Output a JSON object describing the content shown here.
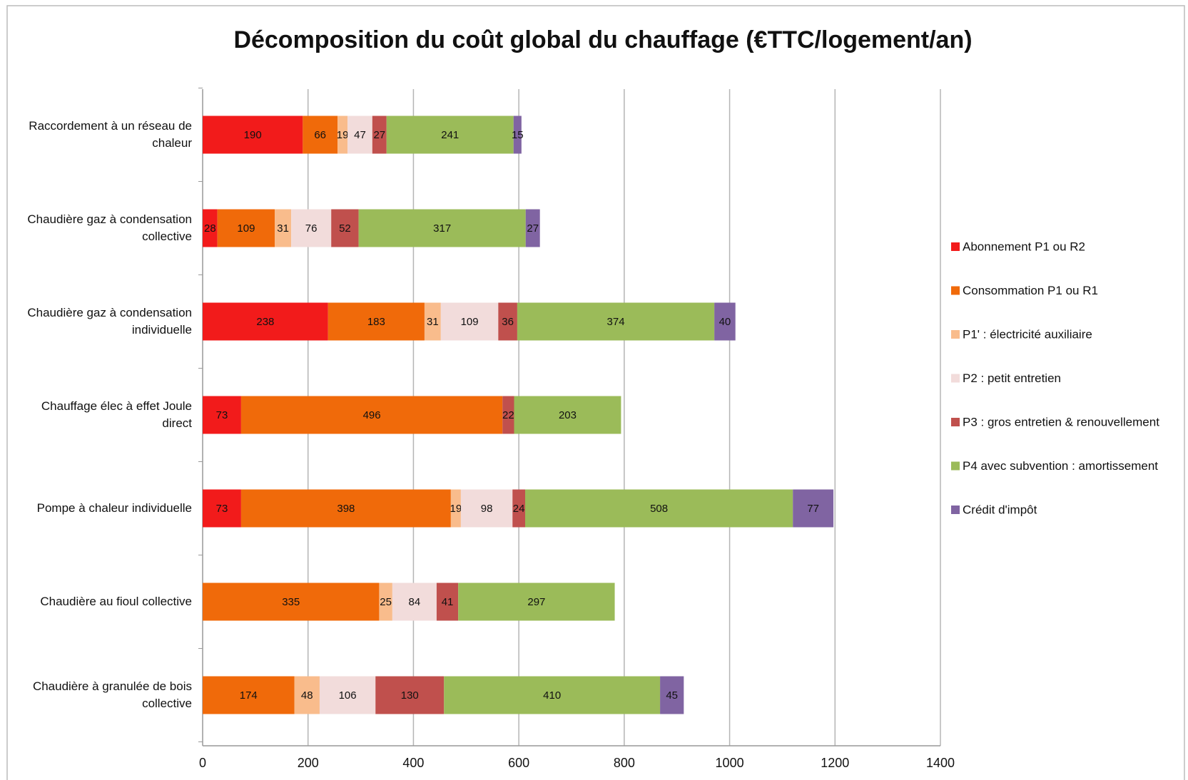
{
  "chart_data": {
    "type": "stacked_barh",
    "title": "Décomposition du coût global du chauffage (€TTC/logement/an)",
    "categories": [
      "Raccordement à un réseau de chaleur",
      "Chaudière gaz à condensation collective",
      "Chaudière gaz à condensation individuelle",
      "Chauffage élec à effet Joule direct",
      "Pompe à chaleur individuelle",
      "Chaudière au fioul collective",
      "Chaudière à granulée de bois collective"
    ],
    "series": [
      {
        "name": "Abonnement P1 ou R2",
        "color": "#f21b1b",
        "values": [
          190,
          28,
          238,
          73,
          73,
          null,
          null
        ]
      },
      {
        "name": "Consommation P1 ou R1",
        "color": "#f06a0a",
        "values": [
          66,
          109,
          183,
          496,
          398,
          335,
          174
        ]
      },
      {
        "name": "P1' : électricité auxiliaire",
        "color": "#f9bc8c",
        "values": [
          19,
          31,
          31,
          null,
          19,
          25,
          48
        ]
      },
      {
        "name": "P2 : petit entretien",
        "color": "#f2dcdb",
        "values": [
          47,
          76,
          109,
          null,
          98,
          84,
          106
        ]
      },
      {
        "name": "P3 : gros entretien & renouvellement",
        "color": "#c0504d",
        "values": [
          27,
          52,
          36,
          22,
          24,
          41,
          130
        ]
      },
      {
        "name": "P4 avec subvention : amortissement",
        "color": "#9bbb59",
        "values": [
          241,
          317,
          374,
          203,
          508,
          297,
          410
        ]
      },
      {
        "name": "Crédit d'impôt",
        "color": "#8064a2",
        "values": [
          15,
          27,
          40,
          null,
          77,
          null,
          45
        ]
      }
    ],
    "xlim": [
      0,
      1400
    ],
    "xticks": [
      0,
      200,
      400,
      600,
      800,
      1000,
      1200,
      1400
    ],
    "grid": true,
    "legend": "right"
  }
}
